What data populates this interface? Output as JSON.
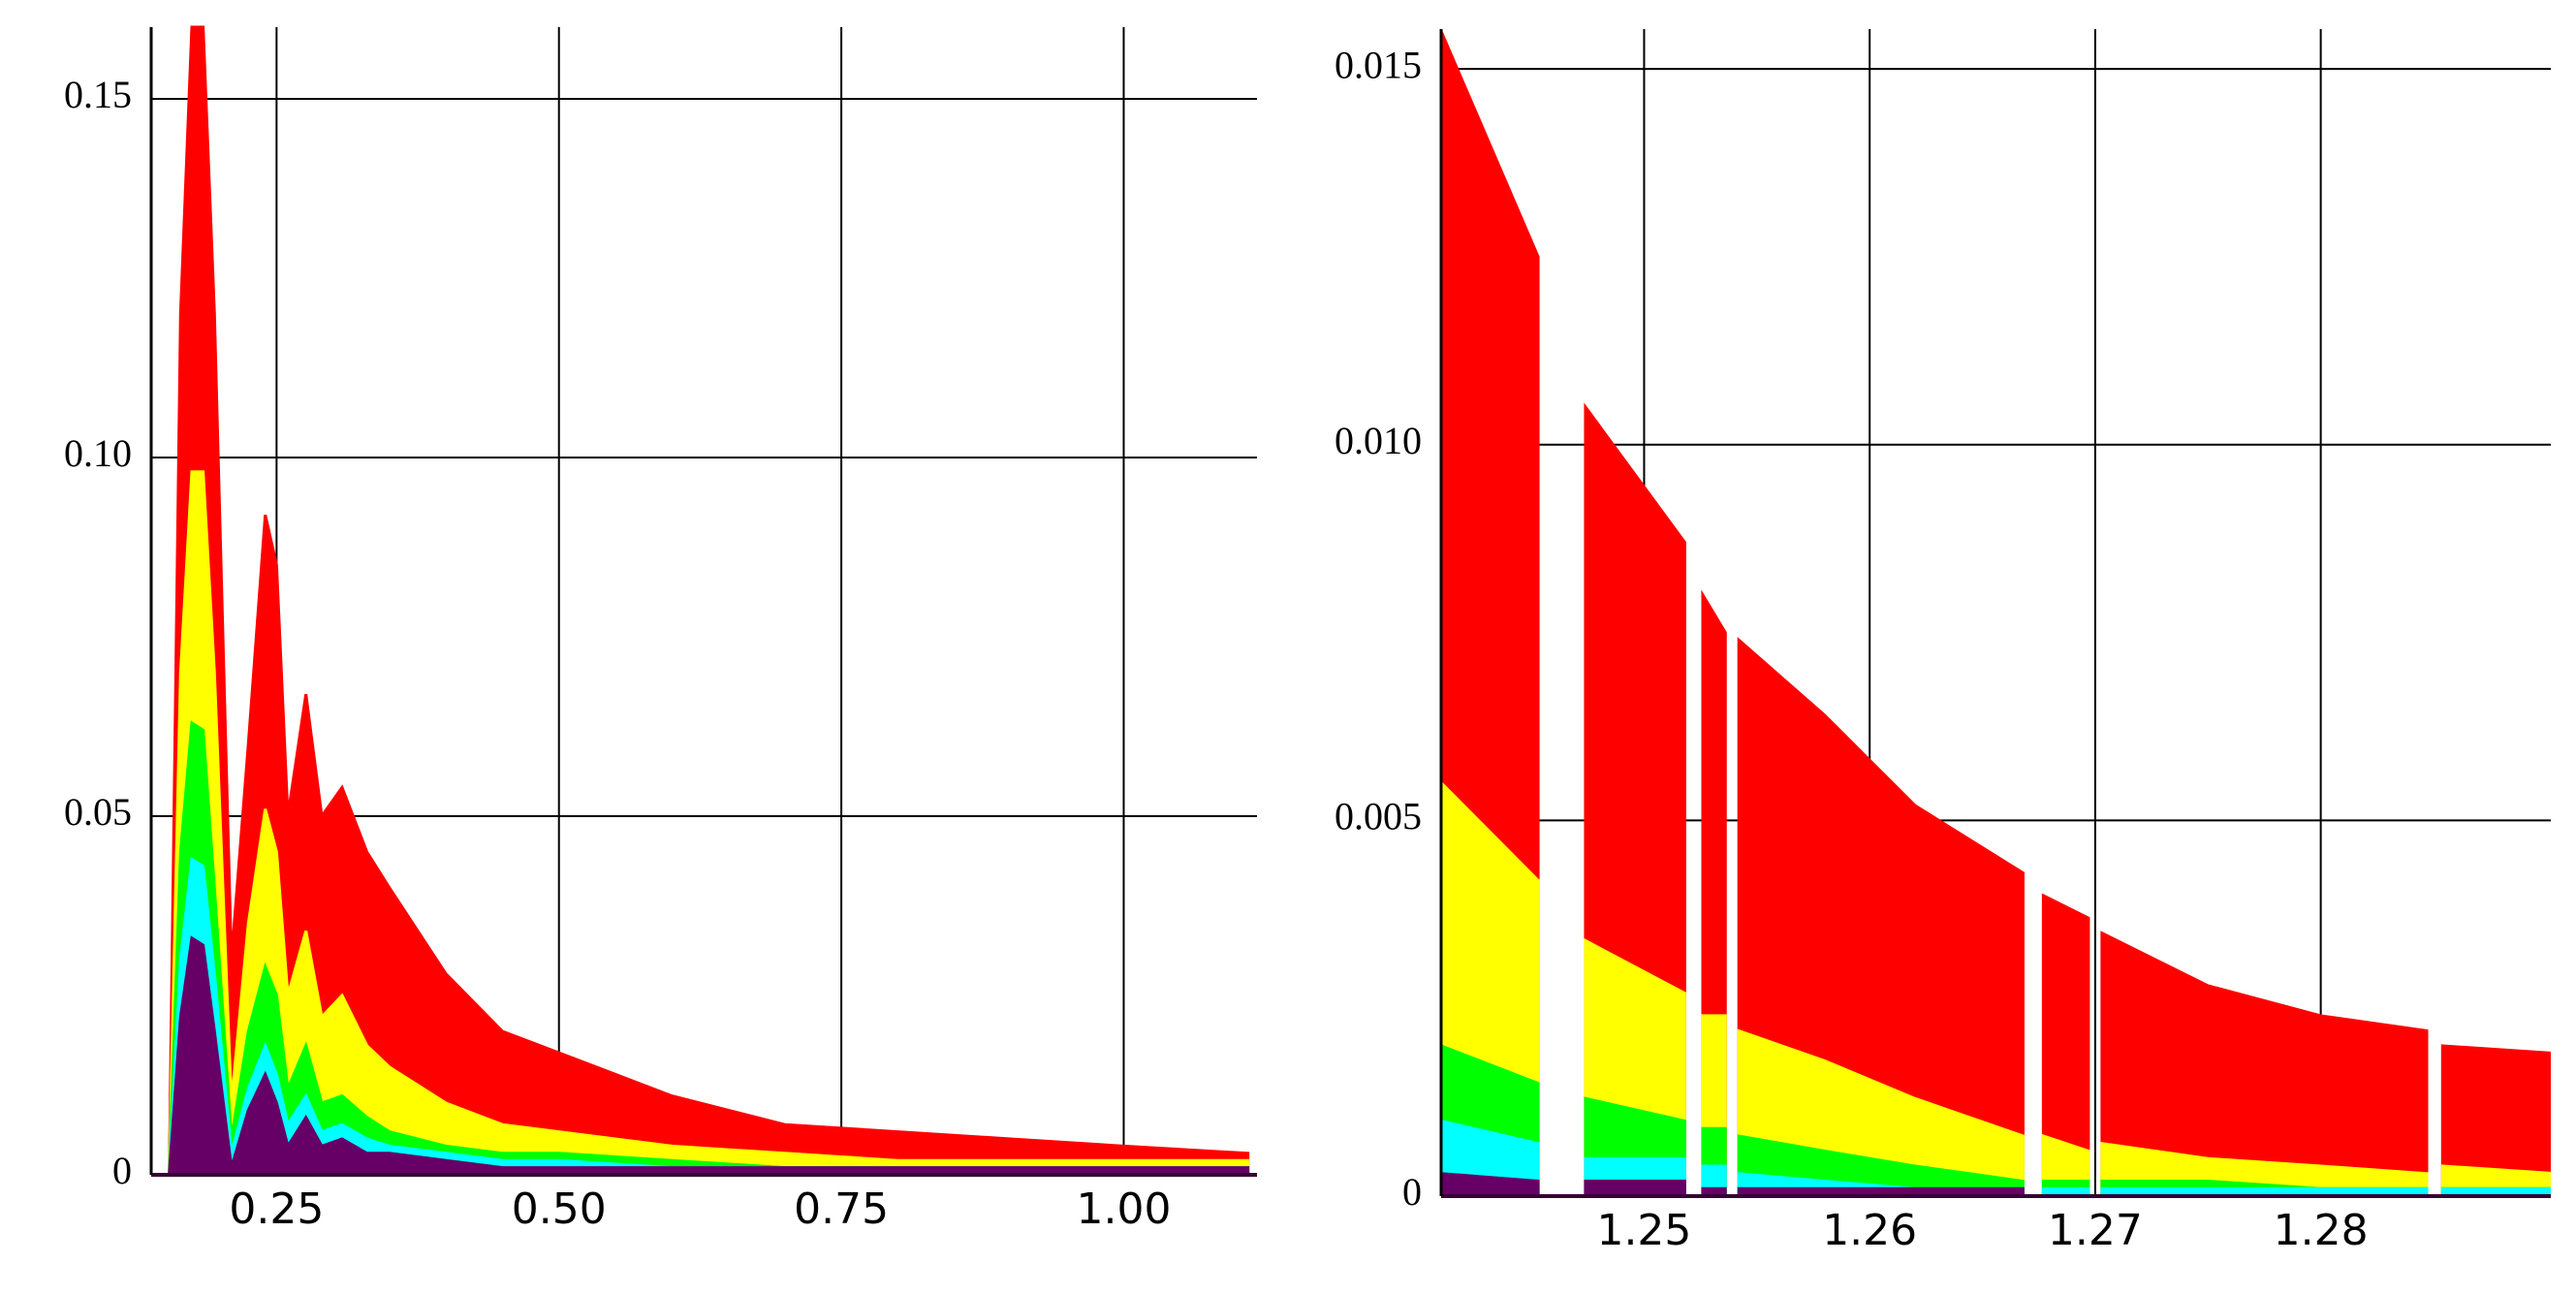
{
  "chart_data": [
    {
      "type": "area",
      "x": [
        0.155,
        0.165,
        0.175,
        0.185,
        0.195,
        0.21,
        0.225,
        0.24,
        0.25,
        0.26,
        0.276,
        0.29,
        0.308,
        0.33,
        0.35,
        0.4,
        0.45,
        0.5,
        0.6,
        0.7,
        0.8,
        0.9,
        1.0,
        1.11
      ],
      "series": [
        {
          "color": "#ff0000",
          "values": [
            0,
            0.12,
            0.16,
            0.16,
            0.12,
            0.03,
            0.06,
            0.092,
            0.085,
            0.05,
            0.067,
            0.05,
            0.054,
            0.045,
            0.04,
            0.028,
            0.02,
            0.017,
            0.011,
            0.007,
            0.006,
            0.005,
            0.004,
            0.003
          ]
        },
        {
          "color": "#ffff00",
          "values": [
            0,
            0.07,
            0.098,
            0.098,
            0.07,
            0.01,
            0.035,
            0.051,
            0.045,
            0.025,
            0.034,
            0.022,
            0.025,
            0.018,
            0.015,
            0.01,
            0.007,
            0.006,
            0.004,
            0.003,
            0.002,
            0.002,
            0.002,
            0.002
          ]
        },
        {
          "color": "#00ff00",
          "values": [
            0,
            0.045,
            0.063,
            0.062,
            0.04,
            0.005,
            0.02,
            0.029,
            0.025,
            0.012,
            0.018,
            0.01,
            0.011,
            0.008,
            0.006,
            0.004,
            0.003,
            0.003,
            0.002,
            0.001,
            0.001,
            0.001,
            0.001,
            0.001
          ]
        },
        {
          "color": "#00ffff",
          "values": [
            0,
            0.03,
            0.044,
            0.043,
            0.028,
            0.003,
            0.012,
            0.018,
            0.014,
            0.007,
            0.011,
            0.006,
            0.007,
            0.005,
            0.004,
            0.003,
            0.002,
            0.002,
            0.001,
            0.001,
            0.001,
            0.001,
            0.001,
            0.001
          ]
        },
        {
          "color": "#660066",
          "values": [
            0,
            0.022,
            0.033,
            0.032,
            0.02,
            0.001,
            0.009,
            0.014,
            0.01,
            0.004,
            0.008,
            0.004,
            0.005,
            0.003,
            0.003,
            0.002,
            0.001,
            0.001,
            0.001,
            0.001,
            0.001,
            0.001,
            0.001,
            0.001
          ]
        }
      ],
      "xlim": [
        0.139,
        1.118
      ],
      "ylim": [
        0,
        0.16
      ],
      "xticks": [
        0.25,
        {
          "value": 0.5,
          "label": "0.50"
        },
        0.75,
        {
          "value": 1,
          "label": "1.00"
        }
      ],
      "yticks": [
        0,
        0.05,
        {
          "value": 0.1,
          "label": "0.10"
        },
        0.15
      ],
      "grid": true
    },
    {
      "type": "area",
      "x": [
        1.241,
        1.2453,
        1.2463,
        1.2474,
        1.2518,
        1.2522,
        1.2526,
        1.2536,
        1.2539,
        1.2542,
        1.258,
        1.262,
        1.2668,
        1.2672,
        1.2677,
        1.2697,
        1.27,
        1.2703,
        1.275,
        1.28,
        1.2847,
        1.285,
        1.2854,
        1.2904
      ],
      "series": [
        {
          "color": "#ff0000",
          "values": [
            0.0155,
            0.0125,
            null,
            0.0105,
            0.0087,
            null,
            0.008,
            0.0075,
            null,
            0.0074,
            0.0064,
            0.0052,
            0.0043,
            null,
            0.004,
            0.0037,
            null,
            0.0035,
            0.0028,
            0.0024,
            0.0022,
            null,
            0.002,
            0.0019
          ]
        },
        {
          "color": "#ffff00",
          "values": [
            0.0055,
            0.0042,
            null,
            0.0034,
            0.0027,
            null,
            0.0024,
            0.0024,
            null,
            0.0022,
            0.0018,
            0.0013,
            0.0008,
            null,
            0.0008,
            0.0006,
            null,
            0.0007,
            0.0005,
            0.0004,
            0.0003,
            null,
            0.0004,
            0.0003
          ]
        },
        {
          "color": "#00ff00",
          "values": [
            0.002,
            0.0015,
            null,
            0.0013,
            0.001,
            null,
            0.0009,
            0.0009,
            null,
            0.0008,
            0.0006,
            0.0004,
            0.0002,
            null,
            0.0002,
            0.0002,
            null,
            0.0002,
            0.0002,
            0.0001,
            0.0001,
            null,
            0.0001,
            0.0001
          ]
        },
        {
          "color": "#00ffff",
          "values": [
            0.001,
            0.0007,
            null,
            0.0005,
            0.0005,
            null,
            0.0004,
            0.0004,
            null,
            0.0003,
            0.0002,
            0.0001,
            0.0001,
            null,
            0.0001,
            0.0001,
            null,
            0.0001,
            0.0001,
            0.0001,
            0.0001,
            null,
            0.0001,
            0.0001
          ]
        },
        {
          "color": "#660066",
          "values": [
            0.0003,
            0.0002,
            null,
            0.0002,
            0.0002,
            null,
            0.0001,
            0.0001,
            null,
            0.0001,
            0.0001,
            0.0001,
            0.0001,
            null,
            0,
            0,
            null,
            0,
            0,
            0,
            0,
            null,
            0,
            0
          ]
        }
      ],
      "xlim": [
        1.241,
        1.2902
      ],
      "ylim": [
        0,
        0.01553
      ],
      "xticks": [
        1.25,
        1.26,
        1.27,
        1.28
      ],
      "yticks": [
        0,
        0.005,
        {
          "value": 0.01,
          "label": "0.010"
        },
        0.015
      ],
      "grid": true
    }
  ]
}
